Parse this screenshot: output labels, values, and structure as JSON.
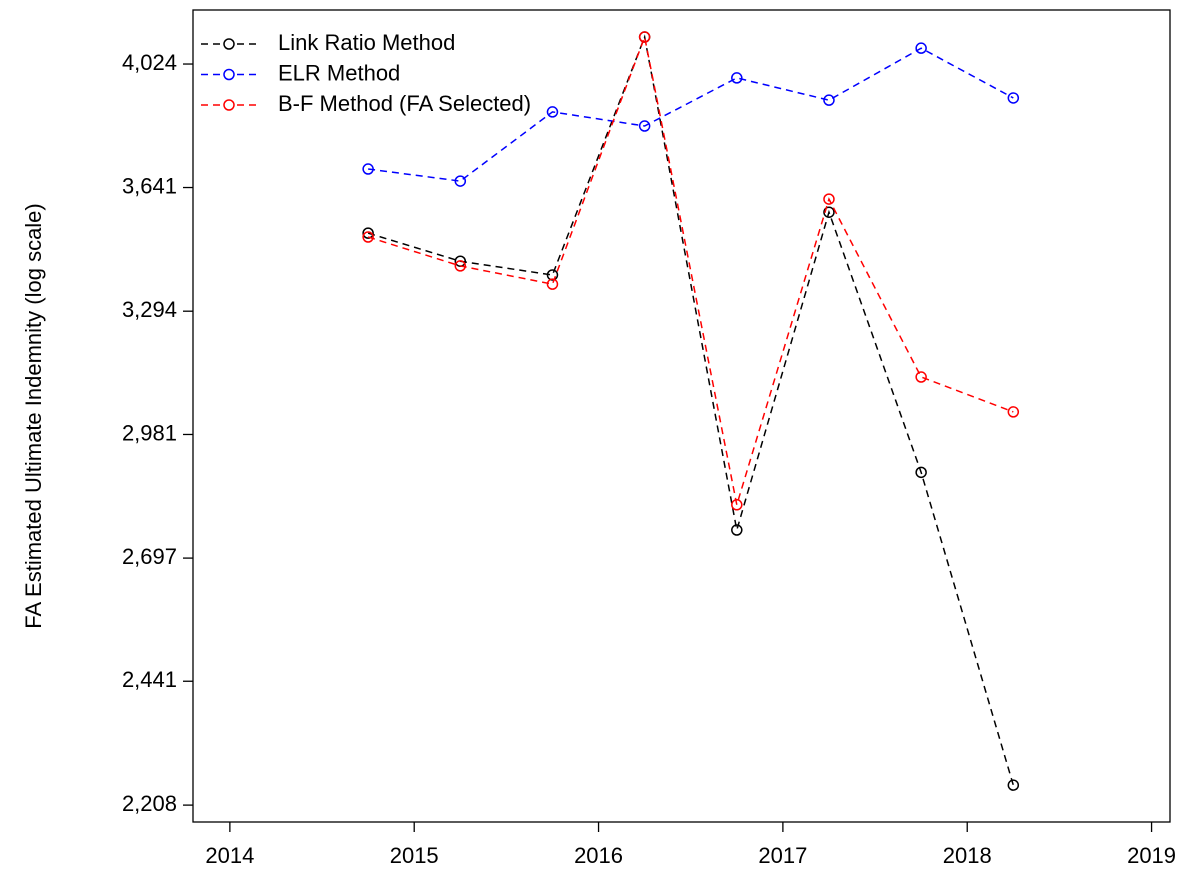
{
  "chart_data": {
    "type": "line",
    "y_label": "FA Estimated Ultimate Indemnity (log scale)",
    "yscale": "log",
    "x": [
      2014.75,
      2015.25,
      2015.75,
      2016.25,
      2016.75,
      2017.25,
      2017.75,
      2018.25
    ],
    "series": [
      {
        "name": "Link Ratio Method",
        "color": "#000000",
        "values": [
          3509,
          3430,
          3392,
          4113,
          2759,
          3569,
          2891,
          2244
        ]
      },
      {
        "name": "ELR Method",
        "color": "#0000ff",
        "values": [
          3696,
          3660,
          3871,
          3827,
          3979,
          3908,
          4076,
          3915
        ]
      },
      {
        "name": "B-F Method (FA Selected)",
        "color": "#ff0000",
        "values": [
          3498,
          3417,
          3367,
          4113,
          2816,
          3607,
          3123,
          3036
        ]
      }
    ],
    "xlim": [
      2013.8,
      2019.1
    ],
    "xticks": [
      2014,
      2015,
      2016,
      2017,
      2018,
      2019
    ],
    "ylim": [
      2178,
      4204
    ],
    "yticks": [
      {
        "value": 2208,
        "label": "2,208"
      },
      {
        "value": 2441,
        "label": "2,441"
      },
      {
        "value": 2697,
        "label": "2,697"
      },
      {
        "value": 2981,
        "label": "2,981"
      },
      {
        "value": 3294,
        "label": "3,294"
      },
      {
        "value": 3641,
        "label": "3,641"
      },
      {
        "value": 4024,
        "label": "4,024"
      }
    ],
    "legend": "top-left",
    "grid": false
  }
}
